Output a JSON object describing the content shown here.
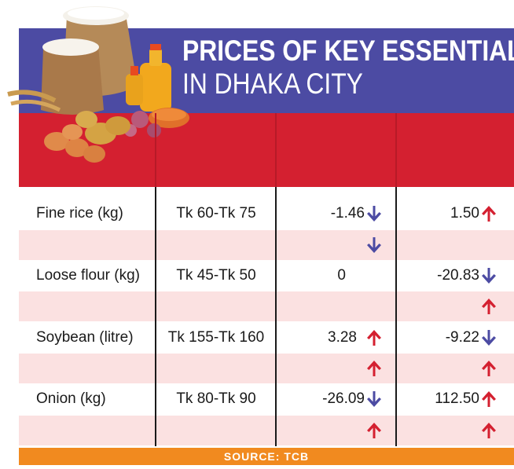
{
  "title": {
    "line1": "PRICES OF KEY ESSENTIALS",
    "line2": "IN DHAKA CITY"
  },
  "source": "SOURCE: TCB",
  "colors": {
    "title_band": "#4c4ba3",
    "header_red": "#d42030",
    "pink_row": "#fbe1e1",
    "source_bar": "#f18a1f",
    "arrow_up": "#d42030",
    "arrow_down": "#4c4ba3"
  },
  "chart_data": {
    "type": "table",
    "columns": [
      "",
      "",
      "",
      ""
    ],
    "rows": [
      {
        "item": "Fine rice (kg)",
        "price": "Tk 60-Tk 75",
        "change1": "-1.46",
        "change1_dir": "down",
        "change2": "1.50",
        "change2_dir": "up"
      },
      {
        "item": "Loose flour (kg)",
        "price": "Tk 45-Tk 50",
        "change1": "0",
        "change1_dir": "none",
        "change2": "-20.83",
        "change2_dir": "down"
      },
      {
        "item": "Soybean (litre)",
        "price": "Tk 155-Tk 160",
        "change1": "3.28",
        "change1_dir": "up",
        "change2": "-9.22",
        "change2_dir": "down"
      },
      {
        "item": "Onion (kg)",
        "price": "Tk 80-Tk 90",
        "change1": "-26.09",
        "change1_dir": "down",
        "change2": "112.50",
        "change2_dir": "up"
      }
    ],
    "spacer_arrows": [
      {
        "col1": "down",
        "col2": "none"
      },
      {
        "col1": "none",
        "col2": "up"
      },
      {
        "col1": "up",
        "col2": "up"
      },
      {
        "col1": "up",
        "col2": "up"
      }
    ]
  }
}
